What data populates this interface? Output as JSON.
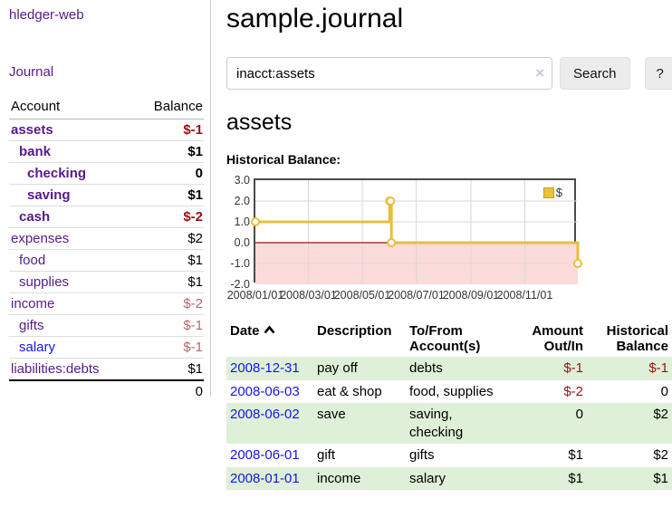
{
  "app": {
    "brand": "hledger-web",
    "nav_journal": "Journal"
  },
  "sidebar": {
    "header": {
      "account": "Account",
      "balance": "Balance"
    },
    "rows": [
      {
        "name": "assets",
        "balance": "$-1",
        "depth": 1,
        "bold": true,
        "neg": "strong"
      },
      {
        "name": "bank",
        "balance": "$1",
        "depth": 2,
        "bold": true,
        "neg": "none"
      },
      {
        "name": "checking",
        "balance": "0",
        "depth": 3,
        "bold": true,
        "neg": "none"
      },
      {
        "name": "saving",
        "balance": "$1",
        "depth": 3,
        "bold": true,
        "neg": "none"
      },
      {
        "name": "cash",
        "balance": "$-2",
        "depth": 2,
        "bold": true,
        "neg": "strong"
      },
      {
        "name": "expenses",
        "balance": "$2",
        "depth": 1,
        "bold": false,
        "neg": "none"
      },
      {
        "name": "food",
        "balance": "$1",
        "depth": 2,
        "bold": false,
        "neg": "none"
      },
      {
        "name": "supplies",
        "balance": "$1",
        "depth": 2,
        "bold": false,
        "neg": "none"
      },
      {
        "name": "income",
        "balance": "$-2",
        "depth": 1,
        "bold": false,
        "neg": "muted"
      },
      {
        "name": "gifts",
        "balance": "$-1",
        "depth": 2,
        "bold": false,
        "neg": "muted"
      },
      {
        "name": "salary",
        "balance": "$-1",
        "depth": 2,
        "bold": false,
        "neg": "muted",
        "link": "blue"
      },
      {
        "name": "liabilities:debts",
        "balance": "$1",
        "depth": 1,
        "bold": false,
        "neg": "none"
      }
    ],
    "total": "0"
  },
  "header": {
    "title": "sample.journal"
  },
  "search": {
    "value": "inacct:assets",
    "clear_icon": "×",
    "button_label": "Search",
    "help_label": "?"
  },
  "account_page": {
    "title": "assets",
    "chart_label": "Historical Balance:"
  },
  "chart_data": {
    "type": "line",
    "step": true,
    "title": "Historical Balance",
    "legend_label": "$",
    "legend_position": "top-right",
    "grid": true,
    "ylim": [
      -2.0,
      3.0
    ],
    "yticks": [
      "3.0",
      "2.0",
      "1.0",
      "0.0",
      "-1.0",
      "-2.0"
    ],
    "ytick_values": [
      3.0,
      2.0,
      1.0,
      0.0,
      -1.0,
      -2.0
    ],
    "xticks": [
      "2008/01/01",
      "2008/03/01",
      "2008/05/01",
      "2008/07/01",
      "2008/09/01",
      "2008/11/01"
    ],
    "series": [
      {
        "name": "$",
        "x": [
          "2008-01-01",
          "2008-06-01",
          "2008-06-02",
          "2008-06-03",
          "2008-12-31"
        ],
        "values": [
          1,
          2,
          2,
          0,
          -1
        ]
      }
    ],
    "colors": {
      "line": "#e8be3c",
      "marker_fill": "#ffffff",
      "negative_region": "#fbdada",
      "zero_line": "#991111",
      "gridline": "#d9d9d9",
      "plot_border": "#4a4a4a"
    }
  },
  "register": {
    "columns": [
      "Date",
      "Description",
      "To/From Account(s)",
      "Amount Out/In",
      "Historical Balance"
    ],
    "rows": [
      {
        "date": "2008-12-31",
        "description": "pay off",
        "accounts": "debts",
        "amount": "$-1",
        "balance": "$-1",
        "amount_neg": true,
        "balance_neg": true,
        "shade": true
      },
      {
        "date": "2008-06-03",
        "description": "eat & shop",
        "accounts": "food, supplies",
        "amount": "$-2",
        "balance": "0",
        "amount_neg": true,
        "balance_neg": false,
        "shade": false
      },
      {
        "date": "2008-06-02",
        "description": "save",
        "accounts": "saving, checking",
        "amount": "0",
        "balance": "$2",
        "amount_neg": false,
        "balance_neg": false,
        "shade": true
      },
      {
        "date": "2008-06-01",
        "description": "gift",
        "accounts": "gifts",
        "amount": "$1",
        "balance": "$2",
        "amount_neg": false,
        "balance_neg": false,
        "shade": false
      },
      {
        "date": "2008-01-01",
        "description": "income",
        "accounts": "salary",
        "amount": "$1",
        "balance": "$1",
        "amount_neg": false,
        "balance_neg": false,
        "shade": true
      }
    ]
  },
  "palette": {
    "link_purple": "#551a8b",
    "link_blue": "#1515e8",
    "negative_red": "#991111",
    "muted_negative": "#b36a6a",
    "row_shade_green": "#dff0d8"
  }
}
